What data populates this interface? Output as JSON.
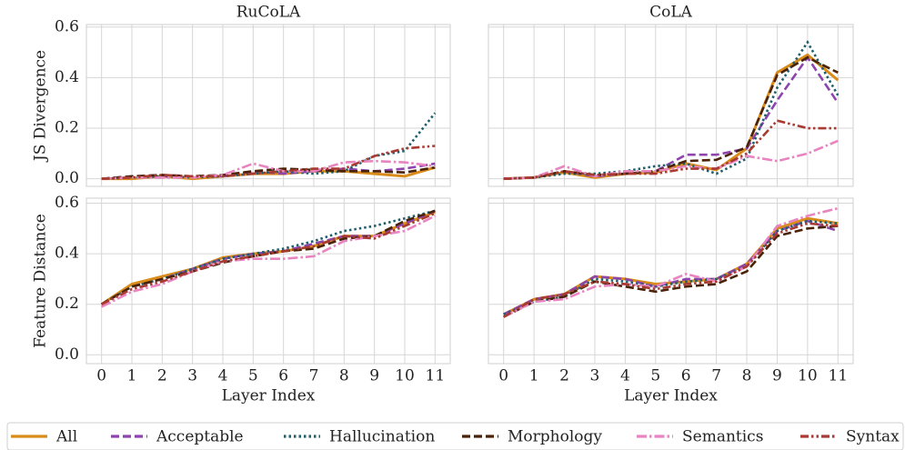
{
  "chart_data": [
    {
      "type": "line",
      "title": "RuCoLA",
      "ylabel": "JS Divergence",
      "legend": "bottom",
      "grid": true,
      "xtick_labels": false,
      "ytick_labels": true,
      "x": [
        0,
        1,
        2,
        3,
        4,
        5,
        6,
        7,
        8,
        9,
        10,
        11
      ],
      "xlim": [
        -0.5,
        11.5
      ],
      "xticks": [
        0,
        1,
        2,
        3,
        4,
        5,
        6,
        7,
        8,
        9,
        10,
        11
      ],
      "ylim": [
        -0.03,
        0.61
      ],
      "yticks": [
        {
          "value": 0,
          "label": "0.0"
        },
        0.2,
        0.4,
        0.6
      ],
      "series": [
        {
          "name": "All",
          "color": "#d98c1a",
          "style": "solid",
          "values": [
            0,
            0,
            0.01,
            0,
            0.01,
            0.02,
            0.02,
            0.03,
            0.03,
            0.02,
            0.01,
            0.045
          ]
        },
        {
          "name": "Acceptable",
          "color": "#8e44ad",
          "style": "dashed",
          "values": [
            0,
            0.01,
            0.01,
            0.01,
            0.01,
            0.03,
            0.02,
            0.03,
            0.04,
            0.03,
            0.04,
            0.06
          ]
        },
        {
          "name": "Hallucination",
          "color": "#1f5f6b",
          "style": "dotted",
          "values": [
            0,
            0.005,
            0.01,
            0.005,
            0.01,
            0.02,
            0.03,
            0.02,
            0.03,
            0.09,
            0.11,
            0.26
          ]
        },
        {
          "name": "Morphology",
          "color": "#4a2208",
          "style": "dashed",
          "values": [
            0,
            0.01,
            0.015,
            0.01,
            0.015,
            0.03,
            0.04,
            0.035,
            0.03,
            0.03,
            0.025,
            0.045
          ]
        },
        {
          "name": "Semantics",
          "color": "#e884c0",
          "style": "dashdot",
          "values": [
            0,
            0.005,
            0.005,
            0.005,
            0.015,
            0.06,
            0.03,
            0.03,
            0.065,
            0.07,
            0.065,
            0.05
          ]
        },
        {
          "name": "Syntax",
          "color": "#a83a32",
          "style": "dashdotdot",
          "values": [
            0,
            0.005,
            0.015,
            0.01,
            0.01,
            0.02,
            0.03,
            0.04,
            0.04,
            0.09,
            0.12,
            0.13
          ]
        }
      ]
    },
    {
      "type": "line",
      "title": "CoLA",
      "grid": true,
      "xtick_labels": false,
      "ytick_labels": false,
      "x": [
        0,
        1,
        2,
        3,
        4,
        5,
        6,
        7,
        8,
        9,
        10,
        11
      ],
      "xlim": [
        -0.5,
        11.5
      ],
      "xticks": [
        0,
        1,
        2,
        3,
        4,
        5,
        6,
        7,
        8,
        9,
        10,
        11
      ],
      "ylim": [
        -0.03,
        0.61
      ],
      "yticks": [
        {
          "value": 0,
          "label": "0.0"
        },
        0.2,
        0.4,
        0.6
      ],
      "series": [
        {
          "name": "All",
          "color": "#d98c1a",
          "style": "solid",
          "values": [
            0,
            0.005,
            0.025,
            0.005,
            0.02,
            0.025,
            0.06,
            0.035,
            0.12,
            0.42,
            0.49,
            0.39
          ]
        },
        {
          "name": "Acceptable",
          "color": "#8e44ad",
          "style": "dashed",
          "values": [
            0,
            0.005,
            0.03,
            0.01,
            0.02,
            0.03,
            0.095,
            0.095,
            0.12,
            0.31,
            0.48,
            0.3
          ]
        },
        {
          "name": "Hallucination",
          "color": "#1f5f6b",
          "style": "dotted",
          "values": [
            0,
            0.005,
            0.02,
            0.02,
            0.03,
            0.05,
            0.06,
            0.02,
            0.08,
            0.36,
            0.54,
            0.33
          ]
        },
        {
          "name": "Morphology",
          "color": "#4a2208",
          "style": "dashed",
          "values": [
            0,
            0.005,
            0.03,
            0.015,
            0.02,
            0.03,
            0.07,
            0.075,
            0.125,
            0.41,
            0.48,
            0.42
          ]
        },
        {
          "name": "Semantics",
          "color": "#e884c0",
          "style": "dashdot",
          "values": [
            0,
            0.005,
            0.05,
            0.01,
            0.03,
            0.03,
            0.05,
            0.04,
            0.09,
            0.07,
            0.1,
            0.15
          ]
        },
        {
          "name": "Syntax",
          "color": "#a83a32",
          "style": "dashdotdot",
          "values": [
            0,
            0.005,
            0.03,
            0.015,
            0.02,
            0.02,
            0.04,
            0.04,
            0.1,
            0.23,
            0.2,
            0.2
          ]
        }
      ]
    },
    {
      "type": "line",
      "ylabel": "Feature Distance",
      "xlabel": "Layer Index",
      "grid": true,
      "xtick_labels": true,
      "ytick_labels": true,
      "x": [
        0,
        1,
        2,
        3,
        4,
        5,
        6,
        7,
        8,
        9,
        10,
        11
      ],
      "xlim": [
        -0.5,
        11.5
      ],
      "xticks": [
        0,
        1,
        2,
        3,
        4,
        5,
        6,
        7,
        8,
        9,
        10,
        11
      ],
      "ylim": [
        -0.035,
        0.62
      ],
      "yticks": [
        {
          "value": 0,
          "label": "0.0"
        },
        0.2,
        0.4,
        0.6
      ],
      "series": [
        {
          "name": "All",
          "color": "#d98c1a",
          "style": "solid",
          "values": [
            0.2,
            0.28,
            0.31,
            0.34,
            0.385,
            0.4,
            0.41,
            0.43,
            0.47,
            0.47,
            0.52,
            0.565
          ]
        },
        {
          "name": "Acceptable",
          "color": "#8e44ad",
          "style": "dashed",
          "values": [
            0.2,
            0.27,
            0.3,
            0.34,
            0.38,
            0.4,
            0.41,
            0.44,
            0.47,
            0.47,
            0.52,
            0.57
          ]
        },
        {
          "name": "Hallucination",
          "color": "#1f5f6b",
          "style": "dotted",
          "values": [
            0.2,
            0.27,
            0.3,
            0.34,
            0.38,
            0.4,
            0.42,
            0.45,
            0.49,
            0.51,
            0.54,
            0.57
          ]
        },
        {
          "name": "Morphology",
          "color": "#4a2208",
          "style": "dashed",
          "values": [
            0.2,
            0.27,
            0.3,
            0.33,
            0.365,
            0.39,
            0.41,
            0.42,
            0.46,
            0.47,
            0.53,
            0.57
          ]
        },
        {
          "name": "Semantics",
          "color": "#e884c0",
          "style": "dashdot",
          "values": [
            0.19,
            0.25,
            0.28,
            0.33,
            0.37,
            0.38,
            0.38,
            0.39,
            0.45,
            0.47,
            0.49,
            0.55
          ]
        },
        {
          "name": "Syntax",
          "color": "#a83a32",
          "style": "dashdotdot",
          "values": [
            0.2,
            0.26,
            0.29,
            0.33,
            0.37,
            0.39,
            0.41,
            0.43,
            0.47,
            0.46,
            0.51,
            0.56
          ]
        }
      ]
    },
    {
      "type": "line",
      "xlabel": "Layer Index",
      "grid": true,
      "xtick_labels": true,
      "ytick_labels": false,
      "x": [
        0,
        1,
        2,
        3,
        4,
        5,
        6,
        7,
        8,
        9,
        10,
        11
      ],
      "xlim": [
        -0.5,
        11.5
      ],
      "xticks": [
        0,
        1,
        2,
        3,
        4,
        5,
        6,
        7,
        8,
        9,
        10,
        11
      ],
      "ylim": [
        -0.035,
        0.62
      ],
      "yticks": [
        {
          "value": 0,
          "label": "0.0"
        },
        0.2,
        0.4,
        0.6
      ],
      "series": [
        {
          "name": "All",
          "color": "#d98c1a",
          "style": "solid",
          "values": [
            0.16,
            0.22,
            0.24,
            0.31,
            0.3,
            0.28,
            0.29,
            0.3,
            0.36,
            0.5,
            0.54,
            0.52
          ]
        },
        {
          "name": "Acceptable",
          "color": "#8e44ad",
          "style": "dashed",
          "values": [
            0.16,
            0.22,
            0.24,
            0.31,
            0.3,
            0.27,
            0.3,
            0.3,
            0.36,
            0.49,
            0.53,
            0.49
          ]
        },
        {
          "name": "Hallucination",
          "color": "#1f5f6b",
          "style": "dotted",
          "values": [
            0.16,
            0.21,
            0.23,
            0.3,
            0.29,
            0.27,
            0.29,
            0.3,
            0.35,
            0.49,
            0.53,
            0.52
          ]
        },
        {
          "name": "Morphology",
          "color": "#4a2208",
          "style": "dashed",
          "values": [
            0.15,
            0.21,
            0.23,
            0.29,
            0.27,
            0.25,
            0.27,
            0.28,
            0.33,
            0.47,
            0.5,
            0.51
          ]
        },
        {
          "name": "Semantics",
          "color": "#e884c0",
          "style": "dashdot",
          "values": [
            0.15,
            0.21,
            0.22,
            0.27,
            0.28,
            0.27,
            0.32,
            0.29,
            0.35,
            0.51,
            0.55,
            0.58
          ]
        },
        {
          "name": "Syntax",
          "color": "#a83a32",
          "style": "dashdotdot",
          "values": [
            0.15,
            0.22,
            0.24,
            0.29,
            0.28,
            0.26,
            0.28,
            0.29,
            0.35,
            0.48,
            0.52,
            0.51
          ]
        }
      ]
    }
  ]
}
